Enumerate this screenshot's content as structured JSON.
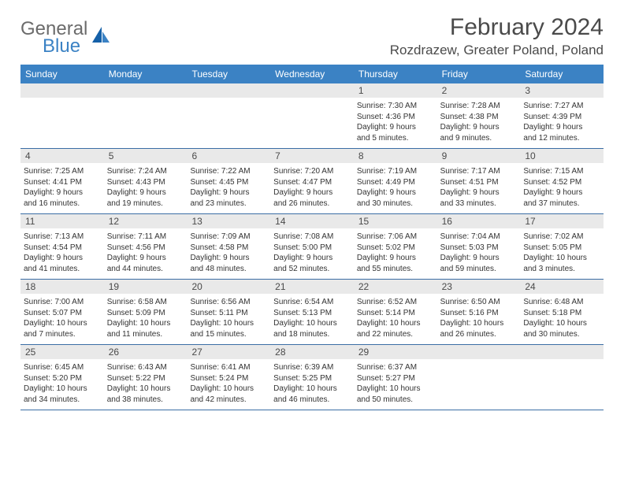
{
  "logo": {
    "word1": "General",
    "word2": "Blue"
  },
  "title": "February 2024",
  "location": "Rozdrazew, Greater Poland, Poland",
  "colors": {
    "header_bg": "#3b82c4",
    "header_text": "#ffffff",
    "daynum_bg": "#e9e9e9",
    "border": "#3b6ea5",
    "text": "#333333",
    "logo_gray": "#6b6b6b",
    "logo_blue": "#3b82c4"
  },
  "day_labels": [
    "Sunday",
    "Monday",
    "Tuesday",
    "Wednesday",
    "Thursday",
    "Friday",
    "Saturday"
  ],
  "weeks": [
    [
      {
        "n": "",
        "lines": []
      },
      {
        "n": "",
        "lines": []
      },
      {
        "n": "",
        "lines": []
      },
      {
        "n": "",
        "lines": []
      },
      {
        "n": "1",
        "lines": [
          "Sunrise: 7:30 AM",
          "Sunset: 4:36 PM",
          "Daylight: 9 hours",
          "and 5 minutes."
        ]
      },
      {
        "n": "2",
        "lines": [
          "Sunrise: 7:28 AM",
          "Sunset: 4:38 PM",
          "Daylight: 9 hours",
          "and 9 minutes."
        ]
      },
      {
        "n": "3",
        "lines": [
          "Sunrise: 7:27 AM",
          "Sunset: 4:39 PM",
          "Daylight: 9 hours",
          "and 12 minutes."
        ]
      }
    ],
    [
      {
        "n": "4",
        "lines": [
          "Sunrise: 7:25 AM",
          "Sunset: 4:41 PM",
          "Daylight: 9 hours",
          "and 16 minutes."
        ]
      },
      {
        "n": "5",
        "lines": [
          "Sunrise: 7:24 AM",
          "Sunset: 4:43 PM",
          "Daylight: 9 hours",
          "and 19 minutes."
        ]
      },
      {
        "n": "6",
        "lines": [
          "Sunrise: 7:22 AM",
          "Sunset: 4:45 PM",
          "Daylight: 9 hours",
          "and 23 minutes."
        ]
      },
      {
        "n": "7",
        "lines": [
          "Sunrise: 7:20 AM",
          "Sunset: 4:47 PM",
          "Daylight: 9 hours",
          "and 26 minutes."
        ]
      },
      {
        "n": "8",
        "lines": [
          "Sunrise: 7:19 AM",
          "Sunset: 4:49 PM",
          "Daylight: 9 hours",
          "and 30 minutes."
        ]
      },
      {
        "n": "9",
        "lines": [
          "Sunrise: 7:17 AM",
          "Sunset: 4:51 PM",
          "Daylight: 9 hours",
          "and 33 minutes."
        ]
      },
      {
        "n": "10",
        "lines": [
          "Sunrise: 7:15 AM",
          "Sunset: 4:52 PM",
          "Daylight: 9 hours",
          "and 37 minutes."
        ]
      }
    ],
    [
      {
        "n": "11",
        "lines": [
          "Sunrise: 7:13 AM",
          "Sunset: 4:54 PM",
          "Daylight: 9 hours",
          "and 41 minutes."
        ]
      },
      {
        "n": "12",
        "lines": [
          "Sunrise: 7:11 AM",
          "Sunset: 4:56 PM",
          "Daylight: 9 hours",
          "and 44 minutes."
        ]
      },
      {
        "n": "13",
        "lines": [
          "Sunrise: 7:09 AM",
          "Sunset: 4:58 PM",
          "Daylight: 9 hours",
          "and 48 minutes."
        ]
      },
      {
        "n": "14",
        "lines": [
          "Sunrise: 7:08 AM",
          "Sunset: 5:00 PM",
          "Daylight: 9 hours",
          "and 52 minutes."
        ]
      },
      {
        "n": "15",
        "lines": [
          "Sunrise: 7:06 AM",
          "Sunset: 5:02 PM",
          "Daylight: 9 hours",
          "and 55 minutes."
        ]
      },
      {
        "n": "16",
        "lines": [
          "Sunrise: 7:04 AM",
          "Sunset: 5:03 PM",
          "Daylight: 9 hours",
          "and 59 minutes."
        ]
      },
      {
        "n": "17",
        "lines": [
          "Sunrise: 7:02 AM",
          "Sunset: 5:05 PM",
          "Daylight: 10 hours",
          "and 3 minutes."
        ]
      }
    ],
    [
      {
        "n": "18",
        "lines": [
          "Sunrise: 7:00 AM",
          "Sunset: 5:07 PM",
          "Daylight: 10 hours",
          "and 7 minutes."
        ]
      },
      {
        "n": "19",
        "lines": [
          "Sunrise: 6:58 AM",
          "Sunset: 5:09 PM",
          "Daylight: 10 hours",
          "and 11 minutes."
        ]
      },
      {
        "n": "20",
        "lines": [
          "Sunrise: 6:56 AM",
          "Sunset: 5:11 PM",
          "Daylight: 10 hours",
          "and 15 minutes."
        ]
      },
      {
        "n": "21",
        "lines": [
          "Sunrise: 6:54 AM",
          "Sunset: 5:13 PM",
          "Daylight: 10 hours",
          "and 18 minutes."
        ]
      },
      {
        "n": "22",
        "lines": [
          "Sunrise: 6:52 AM",
          "Sunset: 5:14 PM",
          "Daylight: 10 hours",
          "and 22 minutes."
        ]
      },
      {
        "n": "23",
        "lines": [
          "Sunrise: 6:50 AM",
          "Sunset: 5:16 PM",
          "Daylight: 10 hours",
          "and 26 minutes."
        ]
      },
      {
        "n": "24",
        "lines": [
          "Sunrise: 6:48 AM",
          "Sunset: 5:18 PM",
          "Daylight: 10 hours",
          "and 30 minutes."
        ]
      }
    ],
    [
      {
        "n": "25",
        "lines": [
          "Sunrise: 6:45 AM",
          "Sunset: 5:20 PM",
          "Daylight: 10 hours",
          "and 34 minutes."
        ]
      },
      {
        "n": "26",
        "lines": [
          "Sunrise: 6:43 AM",
          "Sunset: 5:22 PM",
          "Daylight: 10 hours",
          "and 38 minutes."
        ]
      },
      {
        "n": "27",
        "lines": [
          "Sunrise: 6:41 AM",
          "Sunset: 5:24 PM",
          "Daylight: 10 hours",
          "and 42 minutes."
        ]
      },
      {
        "n": "28",
        "lines": [
          "Sunrise: 6:39 AM",
          "Sunset: 5:25 PM",
          "Daylight: 10 hours",
          "and 46 minutes."
        ]
      },
      {
        "n": "29",
        "lines": [
          "Sunrise: 6:37 AM",
          "Sunset: 5:27 PM",
          "Daylight: 10 hours",
          "and 50 minutes."
        ]
      },
      {
        "n": "",
        "lines": []
      },
      {
        "n": "",
        "lines": []
      }
    ]
  ]
}
